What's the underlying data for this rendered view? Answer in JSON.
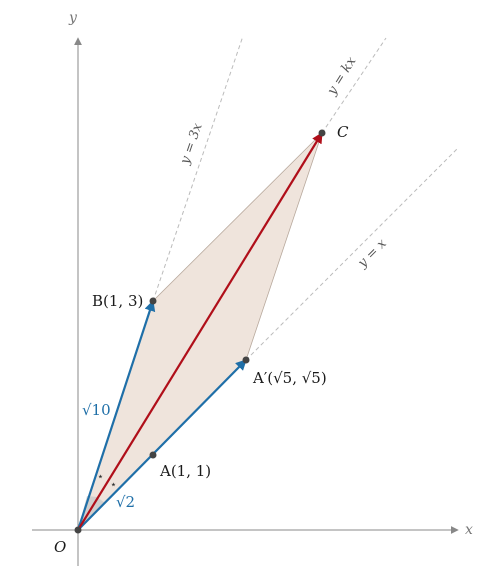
{
  "figure": {
    "axes": {
      "x_label": "x",
      "y_label": "y"
    },
    "origin_label": "O",
    "points": {
      "A": {
        "label": "A(1, 1)"
      },
      "A_prime": {
        "label": "A′(√5, √5)"
      },
      "B": {
        "label": "B(1, 3)"
      },
      "C": {
        "label": "C"
      }
    },
    "lines": {
      "y_eq_3x": "y = 3x",
      "y_eq_kx": "y = kx",
      "y_eq_x": "y = x"
    },
    "lengths": {
      "OB": "√10",
      "OA": "√2"
    },
    "angle_marks": [
      "⋆",
      "⋆"
    ],
    "colors": {
      "axis": "#888888",
      "dashed_line": "#bbbbbb",
      "vector_blue": "#1f6fa8",
      "vector_red": "#b00f1a",
      "rhombus_fill": "#eadbd0",
      "rhombus_stroke": "#b8a99d",
      "point": "#444444",
      "angle_fill": "#cccccc"
    }
  }
}
